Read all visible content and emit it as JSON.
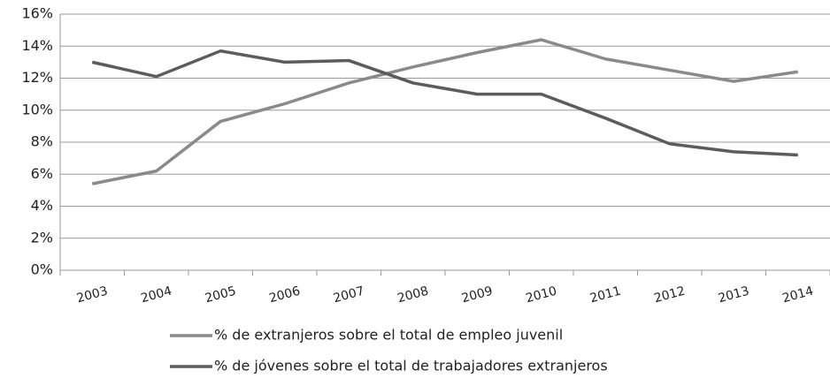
{
  "chart_data": {
    "type": "line",
    "categories": [
      "2003",
      "2004",
      "2005",
      "2006",
      "2007",
      "2008",
      "2009",
      "2010",
      "2011",
      "2012",
      "2013",
      "2014"
    ],
    "series": [
      {
        "name": "% de extranjeros sobre el total de empleo juvenil",
        "color": "#8a8a8a",
        "values": [
          5.4,
          6.2,
          9.3,
          10.4,
          11.7,
          12.7,
          13.6,
          14.4,
          13.2,
          12.5,
          11.8,
          12.4
        ]
      },
      {
        "name": "% de jóvenes sobre el total de trabajadores extranjeros",
        "color": "#5c5c5c",
        "values": [
          13.0,
          12.1,
          13.7,
          13.0,
          13.1,
          11.7,
          11.0,
          11.0,
          9.5,
          7.9,
          7.4,
          7.2
        ]
      }
    ],
    "ylim": [
      0,
      16
    ],
    "yticks": [
      {
        "value": 0,
        "label": "0%"
      },
      {
        "value": 2,
        "label": "2%"
      },
      {
        "value": 4,
        "label": "4%"
      },
      {
        "value": 6,
        "label": "6%"
      },
      {
        "value": 8,
        "label": "8%"
      },
      {
        "value": 10,
        "label": "10%"
      },
      {
        "value": 12,
        "label": "12%"
      },
      {
        "value": 14,
        "label": "14%"
      },
      {
        "value": 16,
        "label": "16%"
      }
    ],
    "grid": true
  }
}
